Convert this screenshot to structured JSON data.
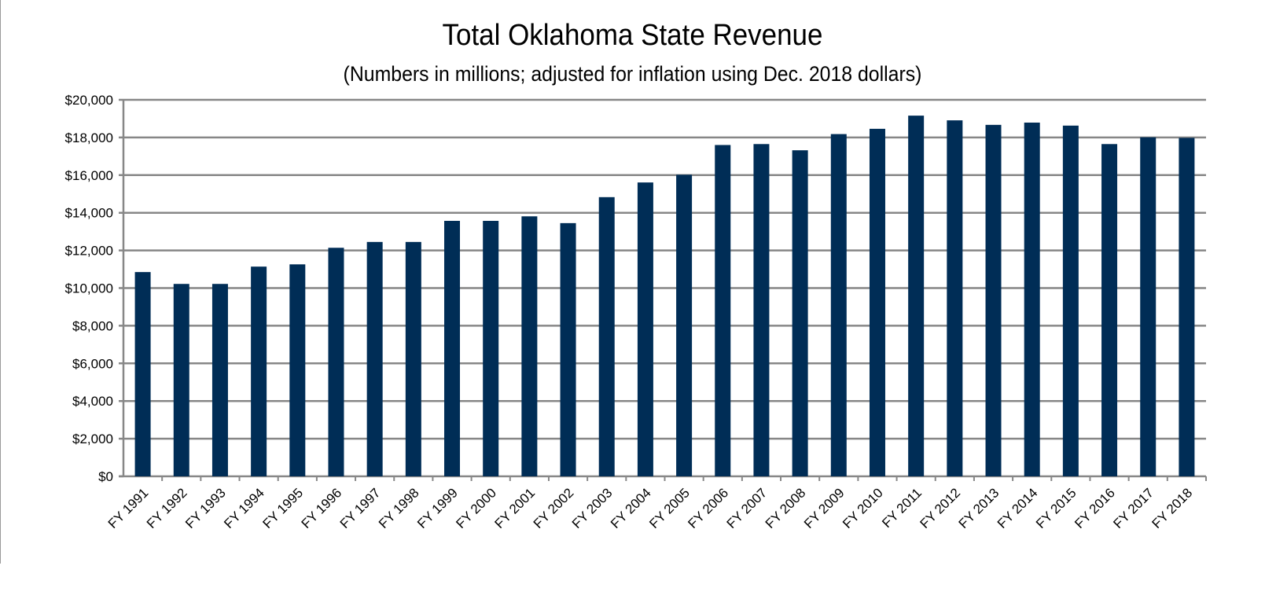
{
  "chart_data": {
    "type": "bar",
    "title": "Total Oklahoma State Revenue",
    "subtitle": "(Numbers in millions; adjusted for inflation using Dec. 2018 dollars)",
    "xlabel": "",
    "ylabel": "",
    "ylim": [
      0,
      20000
    ],
    "yticks": [
      "$0",
      "$2,000",
      "$4,000",
      "$6,000",
      "$8,000",
      "$10,000",
      "$12,000",
      "$14,000",
      "$16,000",
      "$18,000",
      "$20,000"
    ],
    "grid": true,
    "legend": "none",
    "bar_color": "#002D56",
    "grid_color": "#878787",
    "categories": [
      "FY 1991",
      "FY 1992",
      "FY 1993",
      "FY 1994",
      "FY 1995",
      "FY 1996",
      "FY 1997",
      "FY 1998",
      "FY 1999",
      "FY 2000",
      "FY 2001",
      "FY 2002",
      "FY 2003",
      "FY 2004",
      "FY 2005",
      "FY 2006",
      "FY 2007",
      "FY 2008",
      "FY 2009",
      "FY 2010",
      "FY 2011",
      "FY 2012",
      "FY 2013",
      "FY 2014",
      "FY 2015",
      "FY 2016",
      "FY 2017",
      "FY 2018"
    ],
    "values": [
      10850,
      10220,
      10220,
      11140,
      11260,
      12140,
      12450,
      12450,
      13570,
      13570,
      13810,
      13450,
      14830,
      15610,
      16020,
      17600,
      17650,
      17320,
      18180,
      18460,
      19160,
      18910,
      18670,
      18790,
      18630,
      17650,
      18010,
      17980
    ]
  }
}
